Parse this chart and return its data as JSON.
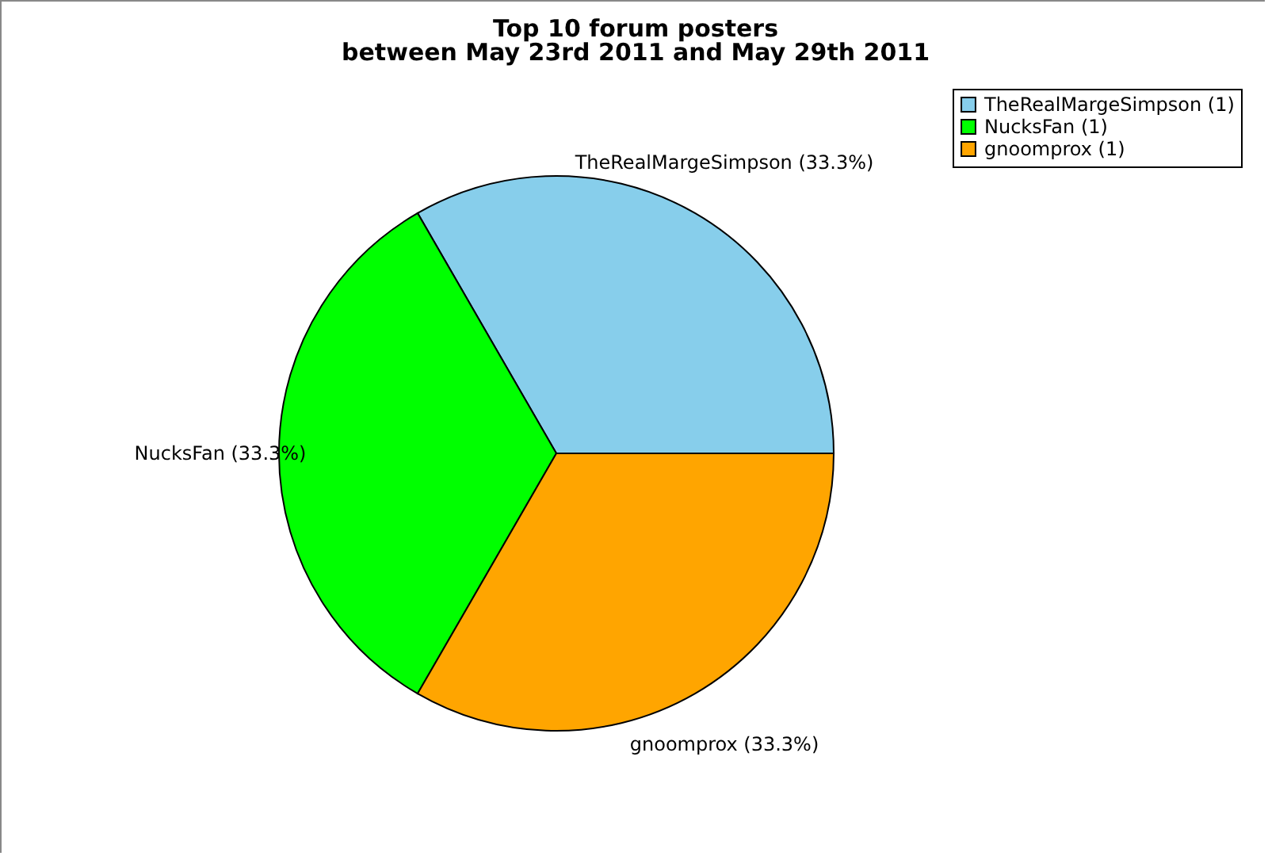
{
  "chart_data": {
    "type": "pie",
    "title": "Top 10 forum posters",
    "subtitle": "between May 23rd 2011 and May 29th 2011",
    "categories": [
      "TheRealMargeSimpson (1)",
      "NucksFan (1)",
      "gnoomprox (1)"
    ],
    "values": [
      33.3,
      33.3,
      33.3
    ],
    "value_labels": [
      "TheRealMargeSimpson (33.3%)",
      "NucksFan (33.3%)",
      "gnoomprox (33.3%)"
    ],
    "colors": [
      "#87ceeb",
      "#00ff00",
      "#ffa500"
    ],
    "legend": "top right"
  }
}
